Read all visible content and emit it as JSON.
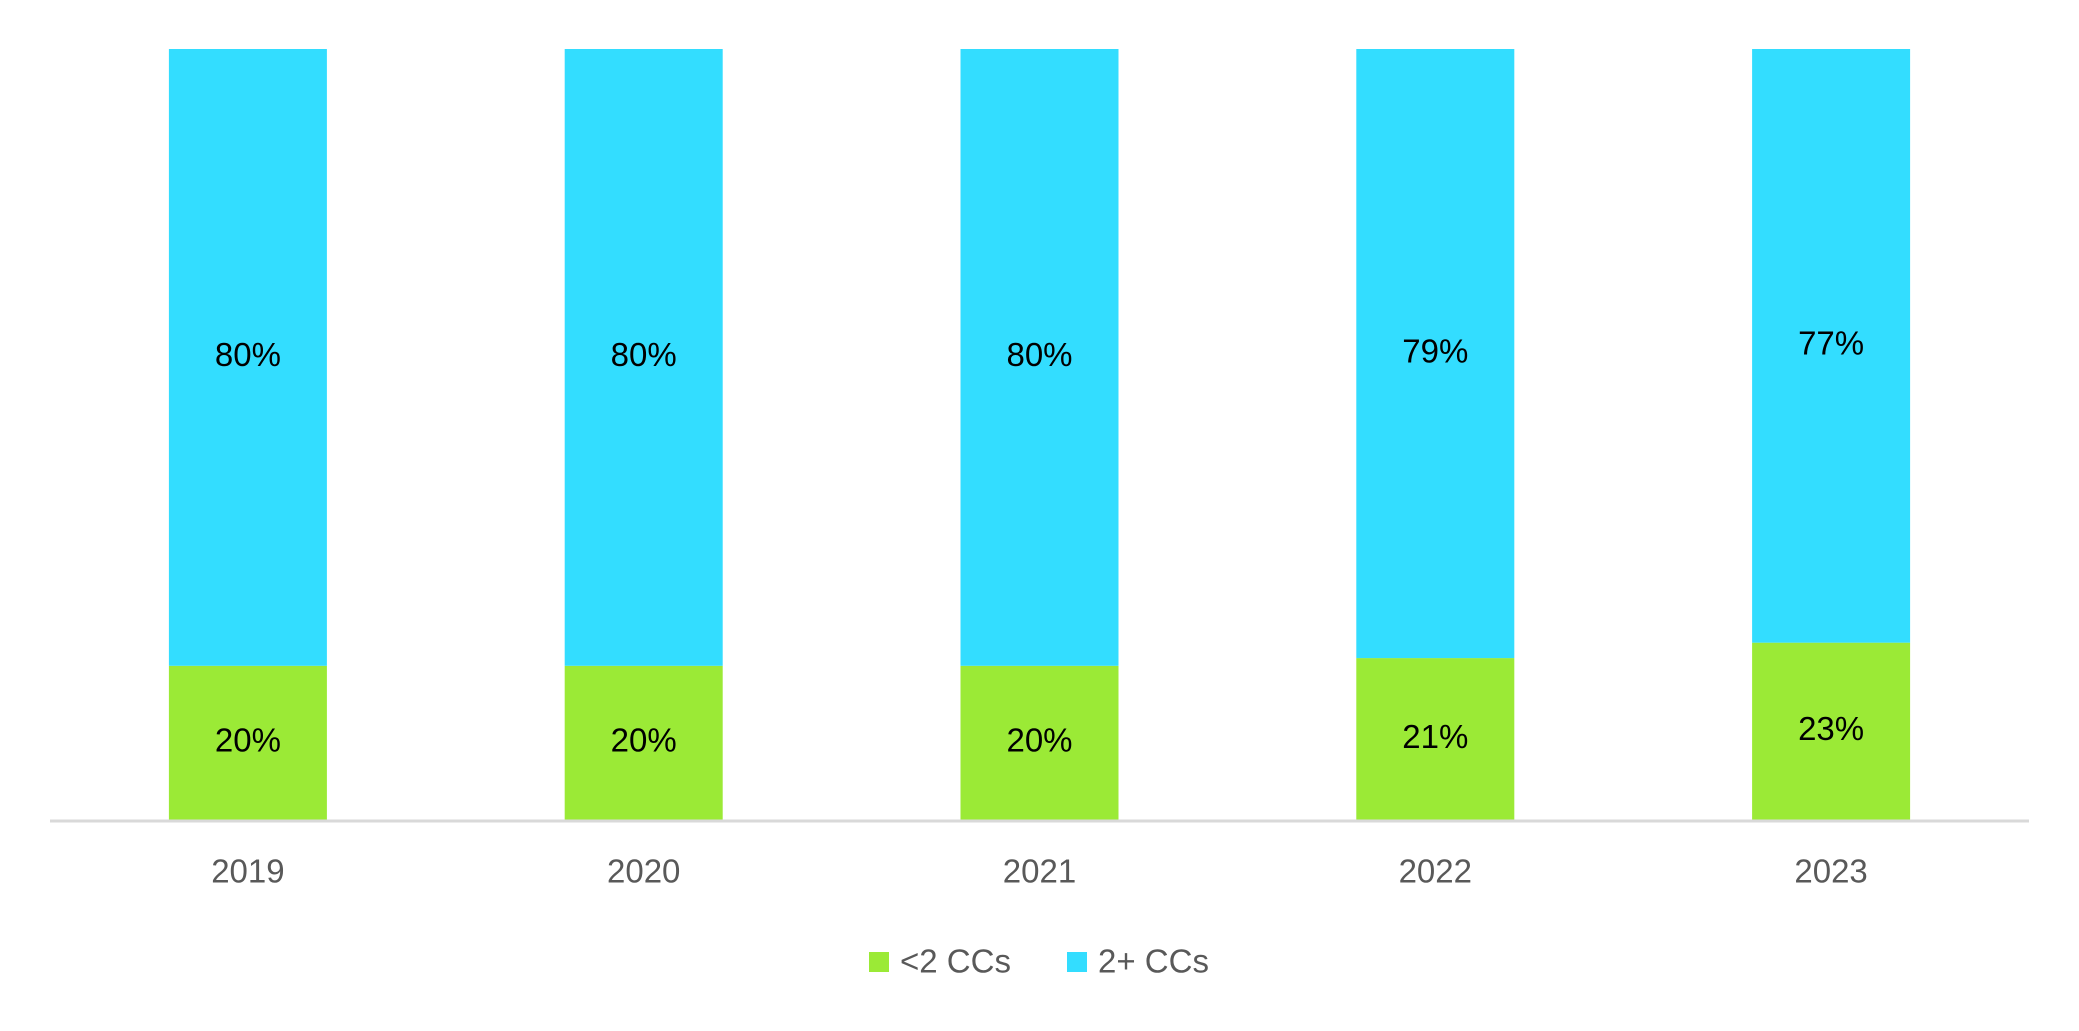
{
  "chart_data": {
    "type": "bar",
    "stacked": true,
    "title": "",
    "xlabel": "",
    "ylabel": "",
    "ylim": [
      0,
      100
    ],
    "grid": false,
    "legend_position": "bottom",
    "categories": [
      "2019",
      "2020",
      "2021",
      "2022",
      "2023"
    ],
    "series": [
      {
        "name": "<2 CCs",
        "color": "#9BEA36",
        "values": [
          20,
          20,
          20,
          21,
          23
        ],
        "labels": [
          "20%",
          "20%",
          "20%",
          "21%",
          "23%"
        ]
      },
      {
        "name": "2+ CCs",
        "color": "#33DDFF",
        "values": [
          80,
          80,
          80,
          79,
          77
        ],
        "labels": [
          "80%",
          "80%",
          "80%",
          "79%",
          "77%"
        ]
      }
    ]
  }
}
